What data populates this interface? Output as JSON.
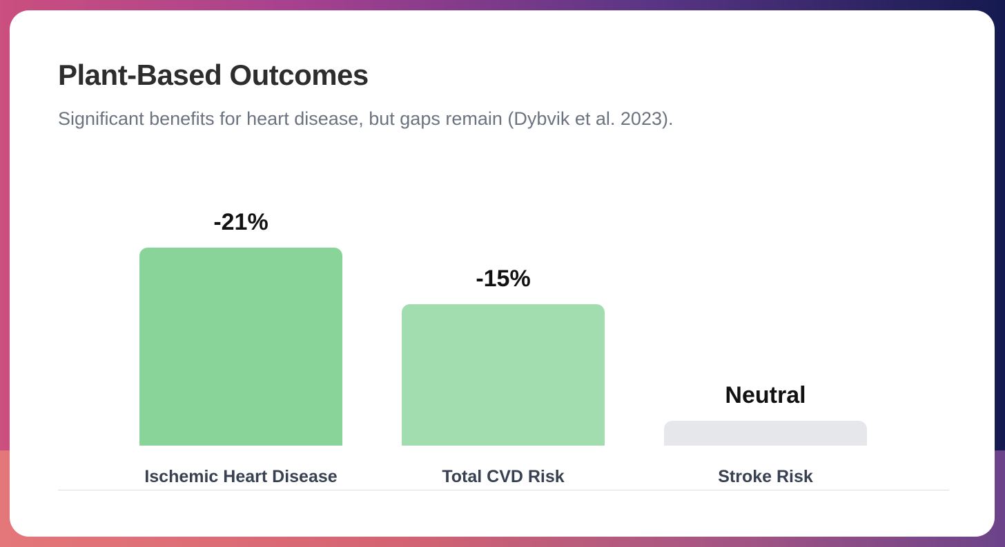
{
  "card": {
    "title": "Plant-Based Outcomes",
    "subtitle": "Significant benefits for heart disease, but gaps remain (Dybvik et al. 2023)."
  },
  "chart_data": {
    "type": "bar",
    "categories": [
      "Ischemic Heart Disease",
      "Total CVD Risk",
      "Stroke Risk"
    ],
    "values": [
      -21,
      -15,
      0
    ],
    "value_labels": [
      "-21%",
      "-15%",
      "Neutral"
    ],
    "bar_colors": [
      "#89d498",
      "#a1ddae",
      "#e5e7eb"
    ],
    "title": "Plant-Based Outcomes",
    "ylabel": "",
    "xlabel": "",
    "grid": false,
    "legend": "none"
  }
}
